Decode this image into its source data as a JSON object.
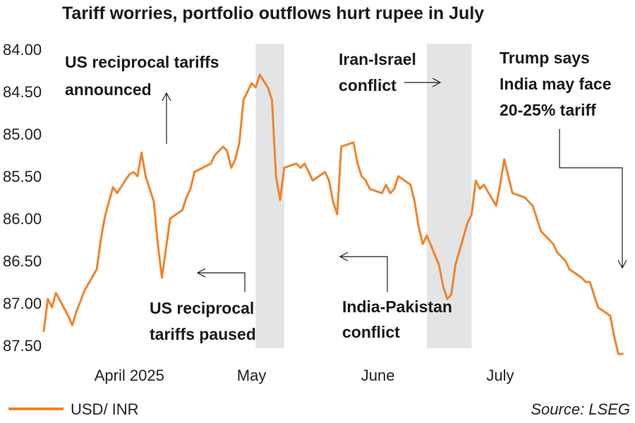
{
  "chart_data": {
    "type": "line",
    "title": "Tariff worries, portfolio outflows hurt rupee in July",
    "y_inverted": true,
    "ylim": [
      84.0,
      87.5
    ],
    "y_ticks": [
      "84.00",
      "84.50",
      "85.00",
      "85.50",
      "86.00",
      "86.50",
      "87.00",
      "87.50"
    ],
    "x_range": [
      "2025-03-11",
      "2025-08-01"
    ],
    "x_ticks": [
      {
        "label": "April 2025",
        "date": "2025-04-01"
      },
      {
        "label": "May",
        "date": "2025-05-01"
      },
      {
        "label": "June",
        "date": "2025-06-01"
      },
      {
        "label": "July",
        "date": "2025-07-01"
      }
    ],
    "color": "#f0832a",
    "shaded_periods": [
      {
        "start": "2025-05-02",
        "end": "2025-05-09"
      },
      {
        "start": "2025-06-13",
        "end": "2025-06-24"
      }
    ],
    "series": [
      {
        "name": "USD/ INR",
        "points": [
          [
            "2025-03-11",
            87.33
          ],
          [
            "2025-03-12",
            86.95
          ],
          [
            "2025-03-13",
            87.05
          ],
          [
            "2025-03-14",
            86.88
          ],
          [
            "2025-03-17",
            87.15
          ],
          [
            "2025-03-18",
            87.26
          ],
          [
            "2025-03-19",
            87.1
          ],
          [
            "2025-03-20",
            86.98
          ],
          [
            "2025-03-21",
            86.85
          ],
          [
            "2025-03-24",
            86.6
          ],
          [
            "2025-03-25",
            86.25
          ],
          [
            "2025-03-26",
            85.98
          ],
          [
            "2025-03-27",
            85.8
          ],
          [
            "2025-03-28",
            85.63
          ],
          [
            "2025-03-29",
            85.7
          ],
          [
            "2025-03-31",
            85.55
          ],
          [
            "2025-04-01",
            85.48
          ],
          [
            "2025-04-02",
            85.45
          ],
          [
            "2025-04-03",
            85.5
          ],
          [
            "2025-04-04",
            85.22
          ],
          [
            "2025-04-05",
            85.5
          ],
          [
            "2025-04-07",
            85.8
          ],
          [
            "2025-04-08",
            86.3
          ],
          [
            "2025-04-09",
            86.7
          ],
          [
            "2025-04-10",
            86.35
          ],
          [
            "2025-04-11",
            86.0
          ],
          [
            "2025-04-14",
            85.9
          ],
          [
            "2025-04-15",
            85.75
          ],
          [
            "2025-04-16",
            85.65
          ],
          [
            "2025-04-17",
            85.45
          ],
          [
            "2025-04-21",
            85.35
          ],
          [
            "2025-04-22",
            85.25
          ],
          [
            "2025-04-23",
            85.2
          ],
          [
            "2025-04-24",
            85.15
          ],
          [
            "2025-04-25",
            85.2
          ],
          [
            "2025-04-26",
            85.4
          ],
          [
            "2025-04-27",
            85.3
          ],
          [
            "2025-04-28",
            85.1
          ],
          [
            "2025-04-29",
            84.6
          ],
          [
            "2025-04-30",
            84.5
          ],
          [
            "2025-05-01",
            84.4
          ],
          [
            "2025-05-02",
            84.45
          ],
          [
            "2025-05-03",
            84.3
          ],
          [
            "2025-05-05",
            84.45
          ],
          [
            "2025-05-06",
            84.6
          ],
          [
            "2025-05-07",
            85.5
          ],
          [
            "2025-05-08",
            85.78
          ],
          [
            "2025-05-09",
            85.4
          ],
          [
            "2025-05-12",
            85.35
          ],
          [
            "2025-05-13",
            85.4
          ],
          [
            "2025-05-14",
            85.35
          ],
          [
            "2025-05-15",
            85.45
          ],
          [
            "2025-05-16",
            85.55
          ],
          [
            "2025-05-19",
            85.45
          ],
          [
            "2025-05-20",
            85.55
          ],
          [
            "2025-05-21",
            85.8
          ],
          [
            "2025-05-22",
            85.95
          ],
          [
            "2025-05-23",
            85.15
          ],
          [
            "2025-05-26",
            85.1
          ],
          [
            "2025-05-27",
            85.35
          ],
          [
            "2025-05-28",
            85.5
          ],
          [
            "2025-05-29",
            85.55
          ],
          [
            "2025-05-30",
            85.65
          ],
          [
            "2025-06-02",
            85.7
          ],
          [
            "2025-06-03",
            85.6
          ],
          [
            "2025-06-04",
            85.7
          ],
          [
            "2025-06-05",
            85.65
          ],
          [
            "2025-06-06",
            85.5
          ],
          [
            "2025-06-09",
            85.6
          ],
          [
            "2025-06-10",
            85.8
          ],
          [
            "2025-06-11",
            86.1
          ],
          [
            "2025-06-12",
            86.3
          ],
          [
            "2025-06-13",
            86.2
          ],
          [
            "2025-06-16",
            86.55
          ],
          [
            "2025-06-17",
            86.8
          ],
          [
            "2025-06-18",
            86.95
          ],
          [
            "2025-06-19",
            86.9
          ],
          [
            "2025-06-20",
            86.55
          ],
          [
            "2025-06-23",
            86.05
          ],
          [
            "2025-06-24",
            85.95
          ],
          [
            "2025-06-25",
            85.55
          ],
          [
            "2025-06-26",
            85.65
          ],
          [
            "2025-06-27",
            85.6
          ],
          [
            "2025-06-30",
            85.85
          ],
          [
            "2025-07-01",
            85.6
          ],
          [
            "2025-07-02",
            85.3
          ],
          [
            "2025-07-03",
            85.5
          ],
          [
            "2025-07-04",
            85.7
          ],
          [
            "2025-07-07",
            85.75
          ],
          [
            "2025-07-08",
            85.8
          ],
          [
            "2025-07-09",
            85.85
          ],
          [
            "2025-07-10",
            86.0
          ],
          [
            "2025-07-11",
            86.15
          ],
          [
            "2025-07-14",
            86.3
          ],
          [
            "2025-07-15",
            86.4
          ],
          [
            "2025-07-16",
            86.45
          ],
          [
            "2025-07-17",
            86.5
          ],
          [
            "2025-07-18",
            86.6
          ],
          [
            "2025-07-21",
            86.7
          ],
          [
            "2025-07-22",
            86.75
          ],
          [
            "2025-07-23",
            86.75
          ],
          [
            "2025-07-24",
            86.9
          ],
          [
            "2025-07-25",
            87.05
          ],
          [
            "2025-07-28",
            87.15
          ],
          [
            "2025-07-29",
            87.4
          ],
          [
            "2025-07-30",
            87.6
          ],
          [
            "2025-07-31",
            87.6
          ]
        ]
      }
    ],
    "annotations": [
      {
        "lines": [
          "US reciprocal tariffs",
          "announced"
        ],
        "date": "2025-04-02",
        "value": 85.22
      },
      {
        "lines": [
          "US reciprocal",
          "tariffs paused"
        ],
        "date": "2025-04-09",
        "value": 86.7
      },
      {
        "lines": [
          "Iran-Israel",
          "conflict"
        ],
        "date": "2025-06-13",
        "value": 84.5
      },
      {
        "lines": [
          "India-Pakistan",
          "conflict"
        ],
        "date": "2025-05-09",
        "value": 86.5
      },
      {
        "lines": [
          "Trump says",
          "India may face",
          "20-25% tariff"
        ],
        "date": "2025-07-29",
        "value": 87.1
      }
    ],
    "legend": {
      "label": "USD/ INR",
      "position": "bottom-left"
    },
    "source": "Source: LSEG"
  }
}
